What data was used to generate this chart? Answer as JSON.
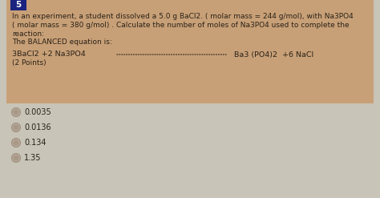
{
  "question_number": "5",
  "question_number_bg": "#1a237e",
  "question_number_color": "#ffffff",
  "box_bg": "#c8a077",
  "page_bg": "#c8c4b8",
  "line1": "In an experiment, a student dissolved a 5.0 g BaCl2. ( molar mass = 244 g/mol), with Na3PO4",
  "line2": "( molar mass = 380 g/mol) . Calculate the number of moles of Na3PO4 used to complete the",
  "line3": "reaction:",
  "line4": "The BALANCED equation is:",
  "equation_left": "3BaCl2 +2 Na3PO4",
  "equation_dots": "- - - - - - - - - - - - - - - - - - - - - - - - - - - - - - -",
  "equation_right": "Ba3 (PO4)2  +6 NaCl",
  "points": "(2 Points)",
  "choices": [
    "0.0035",
    "0.0136",
    "0.134",
    "1.35"
  ],
  "text_color": "#2a2218",
  "choice_text_color": "#2a2218",
  "radio_outer_color": "#a09080",
  "radio_inner_color": "#b8a898",
  "font_size": 6.5,
  "eq_font_size": 6.8,
  "choice_font_size": 7.0,
  "badge_font_size": 7.5
}
